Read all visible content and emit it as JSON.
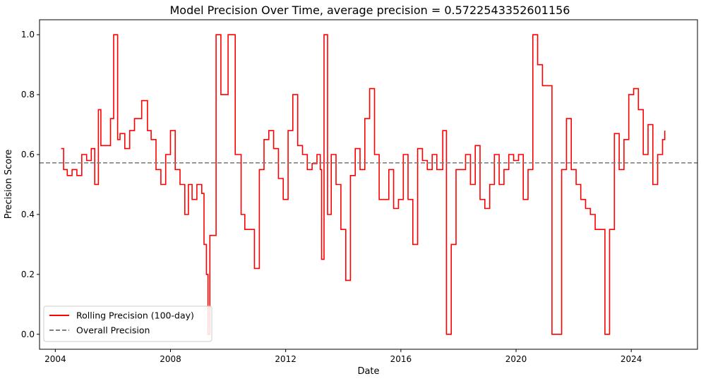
{
  "chart_data": {
    "type": "line",
    "title": "Model Precision Over Time, average precision = 0.5722543352601156",
    "xlabel": "Date",
    "ylabel": "Precision Score",
    "xlim": [
      "2003-06-15",
      "2026-04-20"
    ],
    "ylim": [
      -0.05,
      1.05
    ],
    "x_ticks": [
      {
        "date": "2004-01-01",
        "label": "2004"
      },
      {
        "date": "2008-01-01",
        "label": "2008"
      },
      {
        "date": "2012-01-01",
        "label": "2012"
      },
      {
        "date": "2016-01-01",
        "label": "2016"
      },
      {
        "date": "2020-01-01",
        "label": "2020"
      },
      {
        "date": "2024-01-01",
        "label": "2024"
      }
    ],
    "y_ticks": [
      {
        "value": 0.0,
        "label": "0.0"
      },
      {
        "value": 0.2,
        "label": "0.2"
      },
      {
        "value": 0.4,
        "label": "0.4"
      },
      {
        "value": 0.6,
        "label": "0.6"
      },
      {
        "value": 0.8,
        "label": "0.8"
      },
      {
        "value": 1.0,
        "label": "1.0"
      }
    ],
    "grid": false,
    "legend_position": "lower-left",
    "series": [
      {
        "name": "Rolling Precision (100-day)",
        "color": "#ff0000",
        "style": "solid",
        "x": [
          "2004-03-15",
          "2004-04-15",
          "2004-06-01",
          "2004-08-01",
          "2004-10-01",
          "2004-12-01",
          "2005-02-01",
          "2005-04-01",
          "2005-05-15",
          "2005-07-01",
          "2005-08-01",
          "2005-10-01",
          "2005-12-01",
          "2006-01-10",
          "2006-03-01",
          "2006-04-01",
          "2006-06-01",
          "2006-08-01",
          "2006-10-01",
          "2007-01-01",
          "2007-03-15",
          "2007-05-01",
          "2007-07-01",
          "2007-09-01",
          "2007-11-01",
          "2008-01-01",
          "2008-03-01",
          "2008-05-01",
          "2008-07-01",
          "2008-08-15",
          "2008-10-01",
          "2008-12-01",
          "2009-02-01",
          "2009-03-01",
          "2009-04-01",
          "2009-04-20",
          "2009-05-15",
          "2009-06-15",
          "2009-08-01",
          "2009-10-01",
          "2010-01-01",
          "2010-04-01",
          "2010-06-15",
          "2010-08-01",
          "2010-10-01",
          "2010-12-01",
          "2011-02-01",
          "2011-04-01",
          "2011-06-01",
          "2011-08-01",
          "2011-10-01",
          "2011-12-01",
          "2012-02-01",
          "2012-04-01",
          "2012-06-01",
          "2012-08-01",
          "2012-10-01",
          "2012-12-01",
          "2013-02-01",
          "2013-03-15",
          "2013-04-01",
          "2013-05-01",
          "2013-06-15",
          "2013-08-01",
          "2013-10-01",
          "2013-12-01",
          "2014-02-01",
          "2014-04-01",
          "2014-06-01",
          "2014-08-01",
          "2014-10-01",
          "2014-12-01",
          "2015-02-01",
          "2015-04-01",
          "2015-06-01",
          "2015-08-01",
          "2015-10-01",
          "2015-12-01",
          "2016-02-01",
          "2016-04-01",
          "2016-06-01",
          "2016-08-01",
          "2016-10-01",
          "2016-12-01",
          "2017-02-01",
          "2017-04-01",
          "2017-06-15",
          "2017-08-01",
          "2017-10-01",
          "2017-12-01",
          "2018-02-01",
          "2018-04-01",
          "2018-06-01",
          "2018-08-01",
          "2018-10-01",
          "2018-12-01",
          "2019-02-01",
          "2019-04-01",
          "2019-06-01",
          "2019-08-01",
          "2019-10-01",
          "2019-12-01",
          "2020-02-01",
          "2020-04-01",
          "2020-06-01",
          "2020-08-01",
          "2020-10-01",
          "2020-12-01",
          "2021-02-01",
          "2021-04-01",
          "2021-06-01",
          "2021-08-01",
          "2021-10-01",
          "2021-12-01",
          "2022-02-01",
          "2022-04-01",
          "2022-06-01",
          "2022-08-01",
          "2022-10-01",
          "2022-12-01",
          "2023-02-01",
          "2023-04-01",
          "2023-06-01",
          "2023-08-01",
          "2023-10-01",
          "2023-12-01",
          "2024-02-01",
          "2024-04-01",
          "2024-06-01",
          "2024-08-01",
          "2024-10-01",
          "2024-12-01",
          "2025-02-01",
          "2025-03-01"
        ],
        "y": [
          0.62,
          0.55,
          0.53,
          0.55,
          0.53,
          0.6,
          0.58,
          0.62,
          0.5,
          0.75,
          0.63,
          0.63,
          0.72,
          1.0,
          0.65,
          0.67,
          0.62,
          0.68,
          0.72,
          0.78,
          0.68,
          0.65,
          0.55,
          0.5,
          0.6,
          0.68,
          0.55,
          0.5,
          0.4,
          0.5,
          0.45,
          0.5,
          0.47,
          0.3,
          0.2,
          0.0,
          0.33,
          0.33,
          1.0,
          0.8,
          1.0,
          0.6,
          0.4,
          0.35,
          0.35,
          0.22,
          0.55,
          0.65,
          0.68,
          0.62,
          0.52,
          0.45,
          0.68,
          0.8,
          0.63,
          0.6,
          0.55,
          0.57,
          0.6,
          0.55,
          0.25,
          1.0,
          0.4,
          0.6,
          0.5,
          0.35,
          0.18,
          0.53,
          0.62,
          0.55,
          0.72,
          0.82,
          0.6,
          0.45,
          0.45,
          0.55,
          0.42,
          0.45,
          0.6,
          0.45,
          0.3,
          0.62,
          0.58,
          0.55,
          0.6,
          0.55,
          0.68,
          0.0,
          0.3,
          0.55,
          0.55,
          0.6,
          0.5,
          0.63,
          0.45,
          0.42,
          0.5,
          0.6,
          0.5,
          0.55,
          0.6,
          0.58,
          0.6,
          0.45,
          0.55,
          1.0,
          0.9,
          0.83,
          0.83,
          0.0,
          0.0,
          0.55,
          0.72,
          0.55,
          0.5,
          0.45,
          0.42,
          0.4,
          0.35,
          0.35,
          0.0,
          0.35,
          0.67,
          0.55,
          0.65,
          0.8,
          0.82,
          0.75,
          0.6,
          0.7,
          0.5,
          0.6,
          0.65,
          0.68
        ]
      },
      {
        "name": "Overall Precision",
        "color": "#808080",
        "style": "dashed",
        "value": 0.5722543352601156
      }
    ]
  }
}
